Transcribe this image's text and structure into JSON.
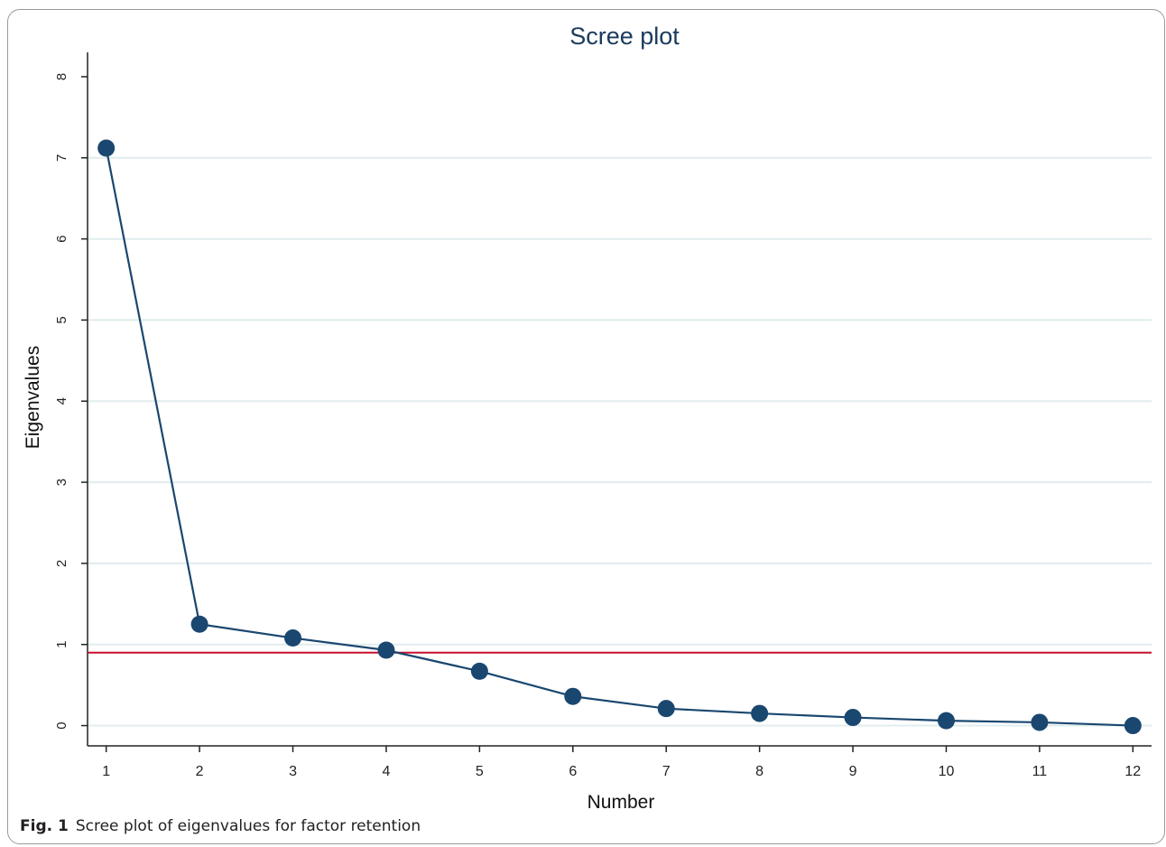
{
  "chart_data": {
    "type": "line",
    "title": "Scree plot",
    "xlabel": "Number",
    "ylabel": "Eigenvalues",
    "x": [
      1,
      2,
      3,
      4,
      5,
      6,
      7,
      8,
      9,
      10,
      11,
      12
    ],
    "series": [
      {
        "values": [
          7.12,
          1.25,
          1.08,
          0.93,
          0.67,
          0.36,
          0.21,
          0.15,
          0.1,
          0.06,
          0.04,
          0.0
        ]
      }
    ],
    "reference_line": {
      "y": 0.9,
      "color": "#c8102e"
    },
    "xlim": [
      0.8,
      12.2
    ],
    "ylim": [
      -0.25,
      8.3
    ],
    "xticks": [
      "1",
      "2",
      "3",
      "4",
      "5",
      "6",
      "7",
      "8",
      "9",
      "10",
      "11",
      "12"
    ],
    "yticks": [
      "0",
      "1",
      "2",
      "3",
      "4",
      "5",
      "6",
      "7",
      "8"
    ],
    "grid": "horizontal",
    "legend": "none",
    "colors": {
      "series": "#1a476f",
      "reference": "#c8102e",
      "grid": "#e0ecee",
      "axis": "#222222"
    }
  },
  "caption": {
    "label": "Fig. 1",
    "text": "Scree plot of eigenvalues for factor retention"
  }
}
